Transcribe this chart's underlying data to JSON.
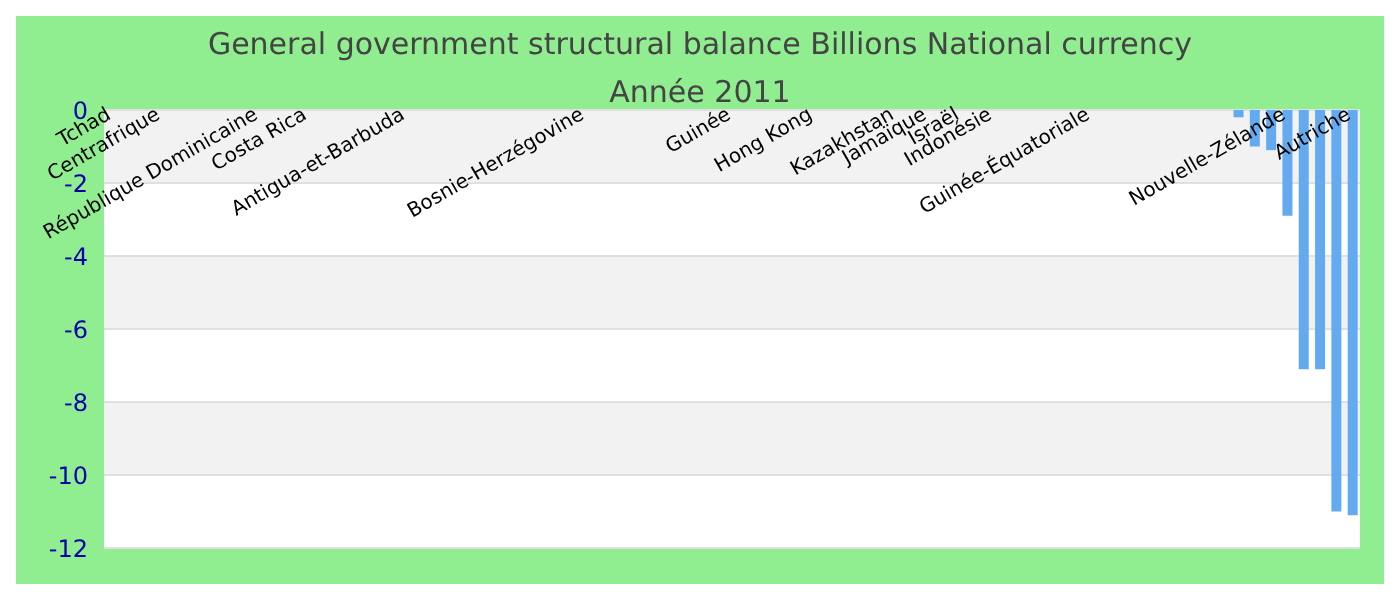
{
  "chart_data": {
    "type": "bar",
    "title": "General government structural balance Billions National currency",
    "subtitle": "Année 2011",
    "categories": [
      "Tchad",
      null,
      null,
      "Centrafrique",
      null,
      null,
      null,
      null,
      null,
      "République Dominicaine",
      null,
      null,
      "Costa Rica",
      null,
      null,
      null,
      null,
      null,
      "Antigua-et-Barbuda",
      null,
      null,
      null,
      null,
      null,
      null,
      null,
      null,
      null,
      null,
      "Bosnie-Herzégovine",
      null,
      null,
      null,
      null,
      null,
      null,
      null,
      null,
      "Guinée",
      null,
      null,
      null,
      null,
      "Hong Kong",
      null,
      null,
      null,
      null,
      "Kazakhstan",
      null,
      "Jamaïque",
      null,
      "Israël",
      null,
      "Indonésie",
      null,
      null,
      null,
      null,
      null,
      "Guinée-Équatoriale",
      null,
      null,
      null,
      null,
      null,
      null,
      null,
      null,
      null,
      null,
      null,
      "Nouvelle-Zélande",
      null,
      null,
      null,
      "Autriche"
    ],
    "values": [
      null,
      null,
      null,
      null,
      null,
      null,
      null,
      null,
      null,
      null,
      null,
      null,
      null,
      null,
      null,
      null,
      null,
      null,
      null,
      null,
      null,
      null,
      null,
      null,
      null,
      null,
      null,
      null,
      null,
      null,
      null,
      null,
      null,
      null,
      null,
      null,
      null,
      null,
      null,
      null,
      null,
      null,
      null,
      null,
      null,
      null,
      null,
      null,
      null,
      null,
      null,
      null,
      null,
      null,
      null,
      null,
      null,
      null,
      null,
      null,
      null,
      null,
      null,
      null,
      null,
      null,
      null,
      null,
      null,
      -0.2,
      -1.0,
      -1.1,
      -2.9,
      -7.1,
      -7.1,
      -11.0,
      -11.1
    ],
    "color": "#64aaf0",
    "ylim": [
      -12,
      0
    ],
    "yticks": [
      -12,
      -10,
      -8,
      -6,
      -4,
      -2,
      0
    ],
    "grid": "y"
  }
}
